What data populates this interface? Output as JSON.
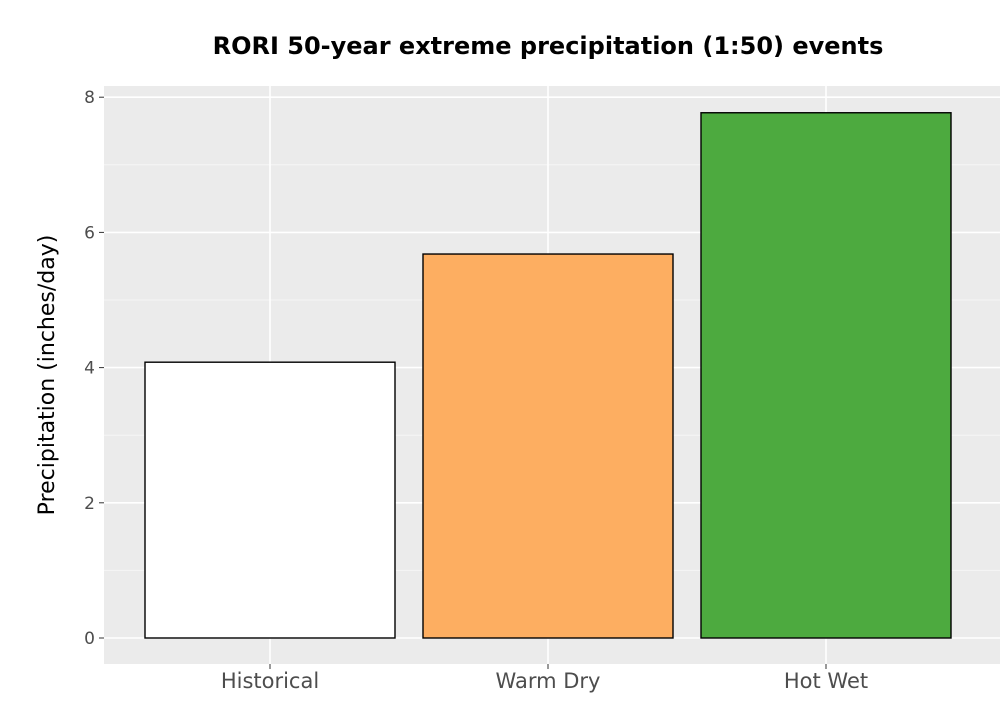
{
  "chart_data": {
    "type": "bar",
    "title": "RORI 50-year extreme precipitation (1:50) events",
    "xlabel": "",
    "ylabel": "Precipitation (inches/day)",
    "categories": [
      "Historical",
      "Warm Dry",
      "Hot Wet"
    ],
    "values": [
      4.08,
      5.68,
      7.77
    ],
    "colors": [
      "#ffffff",
      "#fdae61",
      "#4daa3f"
    ],
    "ylim": [
      -0.35,
      8.15
    ],
    "yticks": [
      0,
      2,
      4,
      6,
      8
    ],
    "grid": true,
    "panel_background": "#ebebeb"
  }
}
